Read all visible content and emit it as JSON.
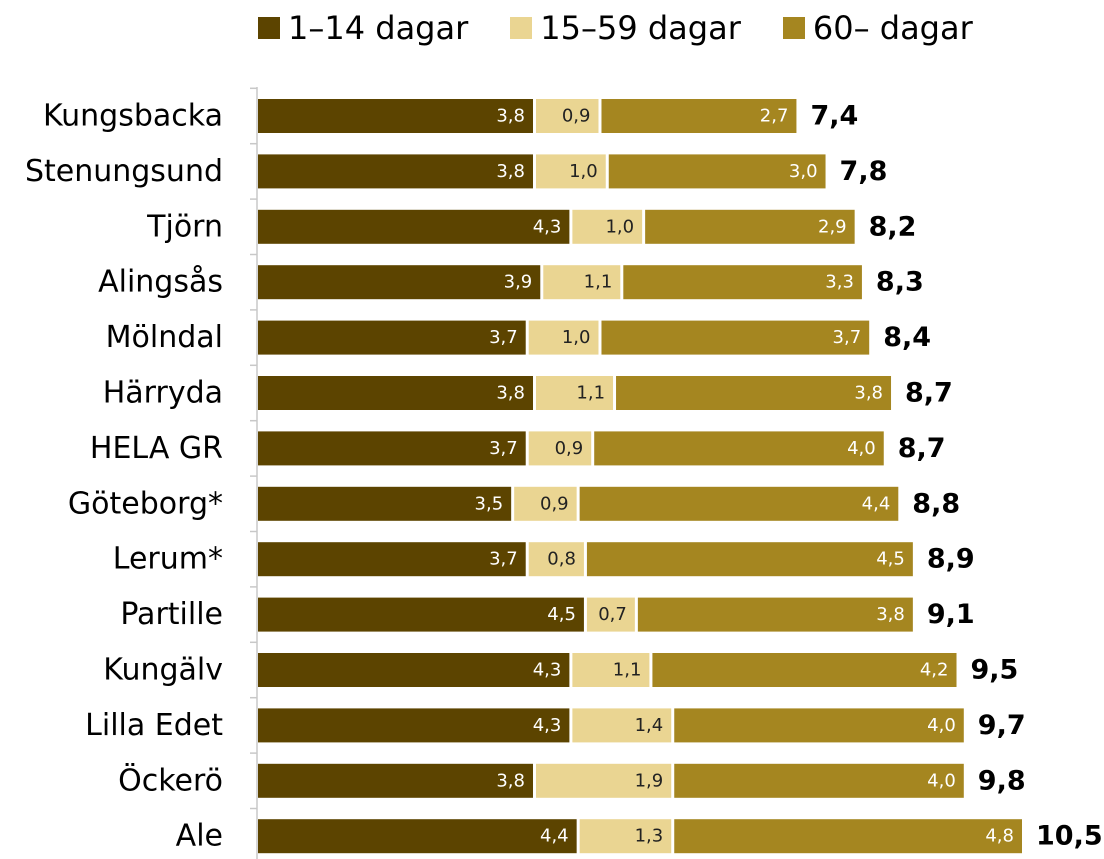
{
  "chart_data": {
    "type": "bar",
    "orientation": "horizontal",
    "stacked": true,
    "title": "",
    "xlabel": "",
    "ylabel": "",
    "grid": false,
    "legend_position": "top",
    "categories": [
      "Kungsbacka",
      "Stenungsund",
      "Tjörn",
      "Alingsås",
      "Mölndal",
      "Härryda",
      "HELA GR",
      "Göteborg*",
      "Lerum*",
      "Partille",
      "Kungälv",
      "Lilla Edet",
      "Öckerö",
      "Ale"
    ],
    "series": [
      {
        "name": "1–14 dagar",
        "color": "#5c4400",
        "label_color": "#ffffff",
        "values": [
          3.8,
          3.8,
          4.3,
          3.9,
          3.7,
          3.8,
          3.7,
          3.5,
          3.7,
          4.5,
          4.3,
          4.3,
          3.8,
          4.4
        ]
      },
      {
        "name": "15–59 dagar",
        "color": "#ead592",
        "label_color": "#222222",
        "values": [
          0.9,
          1.0,
          1.0,
          1.1,
          1.0,
          1.1,
          0.9,
          0.9,
          0.8,
          0.7,
          1.1,
          1.4,
          1.9,
          1.3
        ]
      },
      {
        "name": "60– dagar",
        "color": "#a58620",
        "label_color": "#ffffff",
        "values": [
          2.7,
          3.0,
          2.9,
          3.3,
          3.7,
          3.8,
          4.0,
          4.4,
          4.5,
          3.8,
          4.2,
          4.0,
          4.0,
          4.8
        ]
      }
    ],
    "totals": [
      7.4,
      7.8,
      8.2,
      8.3,
      8.4,
      8.7,
      8.7,
      8.8,
      8.9,
      9.1,
      9.5,
      9.7,
      9.8,
      10.5
    ],
    "decimal_separator": ",",
    "xlim": [
      0,
      10.5
    ],
    "axis_color": "#c8c8c8"
  }
}
